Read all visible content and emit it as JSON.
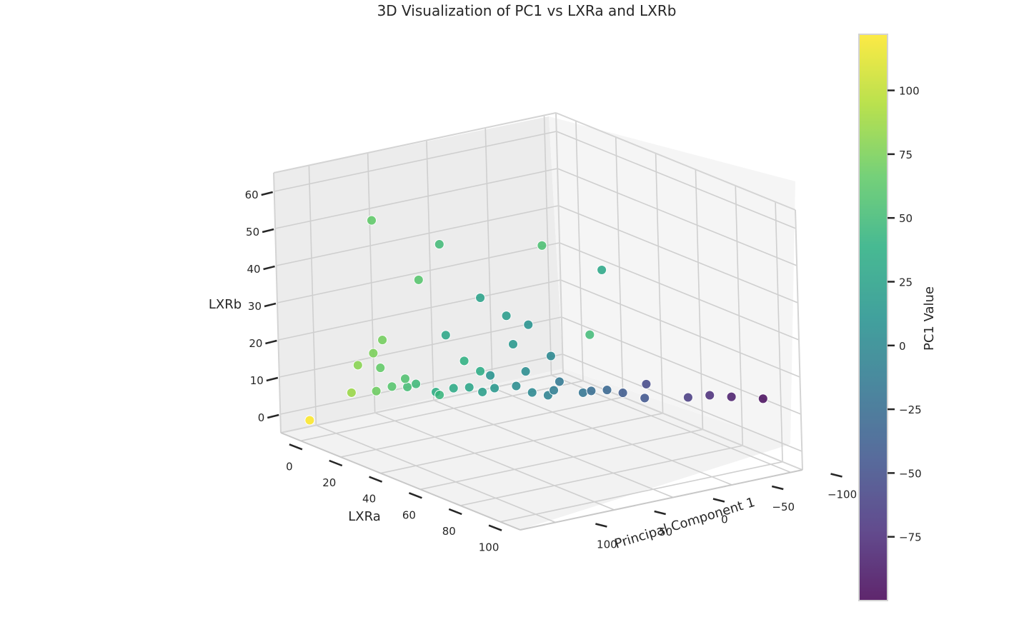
{
  "chart_data": {
    "type": "scatter",
    "projection": "3d",
    "title": "3D Visualization of PC1 vs LXRa and LXRb",
    "x_label": "Principal Component 1",
    "y_label": "LXRa",
    "z_label": "LXRb",
    "x_range": [
      -110,
      130
    ],
    "y_range": [
      -10,
      110
    ],
    "z_range": [
      -5,
      65
    ],
    "x_ticks": [
      "−100",
      "−50",
      "0",
      "50",
      "100"
    ],
    "x_tick_values": [
      -100,
      -50,
      0,
      50,
      100
    ],
    "y_ticks": [
      "0",
      "20",
      "40",
      "60",
      "80",
      "100"
    ],
    "y_tick_values": [
      0,
      20,
      40,
      60,
      80,
      100
    ],
    "z_ticks": [
      "0",
      "10",
      "20",
      "30",
      "40",
      "50",
      "60"
    ],
    "z_tick_values": [
      0,
      10,
      20,
      30,
      40,
      50,
      60
    ],
    "grid": true,
    "colormap": "viridis",
    "colorbar": {
      "label": "PC1 Value",
      "min": -100,
      "max": 122,
      "ticks": [
        "100",
        "75",
        "50",
        "25",
        "0",
        "−25",
        "−50",
        "−75"
      ],
      "tick_values": [
        100,
        75,
        50,
        25,
        0,
        -25,
        -50,
        -75
      ]
    },
    "series": [
      {
        "points": [
          [
            122,
            0,
            0
          ],
          [
            86,
            0,
            5
          ],
          [
            80,
            0,
            12
          ],
          [
            75,
            5,
            16
          ],
          [
            70,
            3,
            5
          ],
          [
            66,
            3,
            11
          ],
          [
            60,
            5,
            6
          ],
          [
            57,
            10,
            9
          ],
          [
            52,
            8,
            6
          ],
          [
            48,
            10,
            7
          ],
          [
            45,
            20,
            6
          ],
          [
            38,
            14,
            5
          ],
          [
            33,
            20,
            7
          ],
          [
            28,
            25,
            8
          ],
          [
            22,
            28,
            7
          ],
          [
            15,
            30,
            8
          ],
          [
            10,
            25,
            10
          ],
          [
            5,
            35,
            9
          ],
          [
            0,
            40,
            8
          ],
          [
            -5,
            45,
            8
          ],
          [
            -10,
            45,
            9
          ],
          [
            -15,
            45,
            11
          ],
          [
            -18,
            55,
            10
          ],
          [
            -25,
            55,
            10
          ],
          [
            -30,
            60,
            11
          ],
          [
            -40,
            62,
            10
          ],
          [
            -45,
            70,
            10
          ],
          [
            -55,
            65,
            12
          ],
          [
            -65,
            80,
            11
          ],
          [
            -75,
            85,
            12
          ],
          [
            -85,
            90,
            12
          ],
          [
            -95,
            100,
            13
          ],
          [
            72,
            8,
            20
          ],
          [
            65,
            0,
            50
          ],
          [
            60,
            20,
            38
          ],
          [
            50,
            25,
            48
          ],
          [
            40,
            30,
            17
          ],
          [
            35,
            35,
            15
          ],
          [
            30,
            15,
            20
          ],
          [
            25,
            30,
            33
          ],
          [
            20,
            40,
            30
          ],
          [
            15,
            40,
            22
          ],
          [
            10,
            45,
            28
          ],
          [
            5,
            40,
            14
          ],
          [
            0,
            50,
            20
          ],
          [
            55,
            80,
            60
          ],
          [
            30,
            95,
            55
          ],
          [
            50,
            100,
            40
          ]
        ]
      }
    ]
  }
}
